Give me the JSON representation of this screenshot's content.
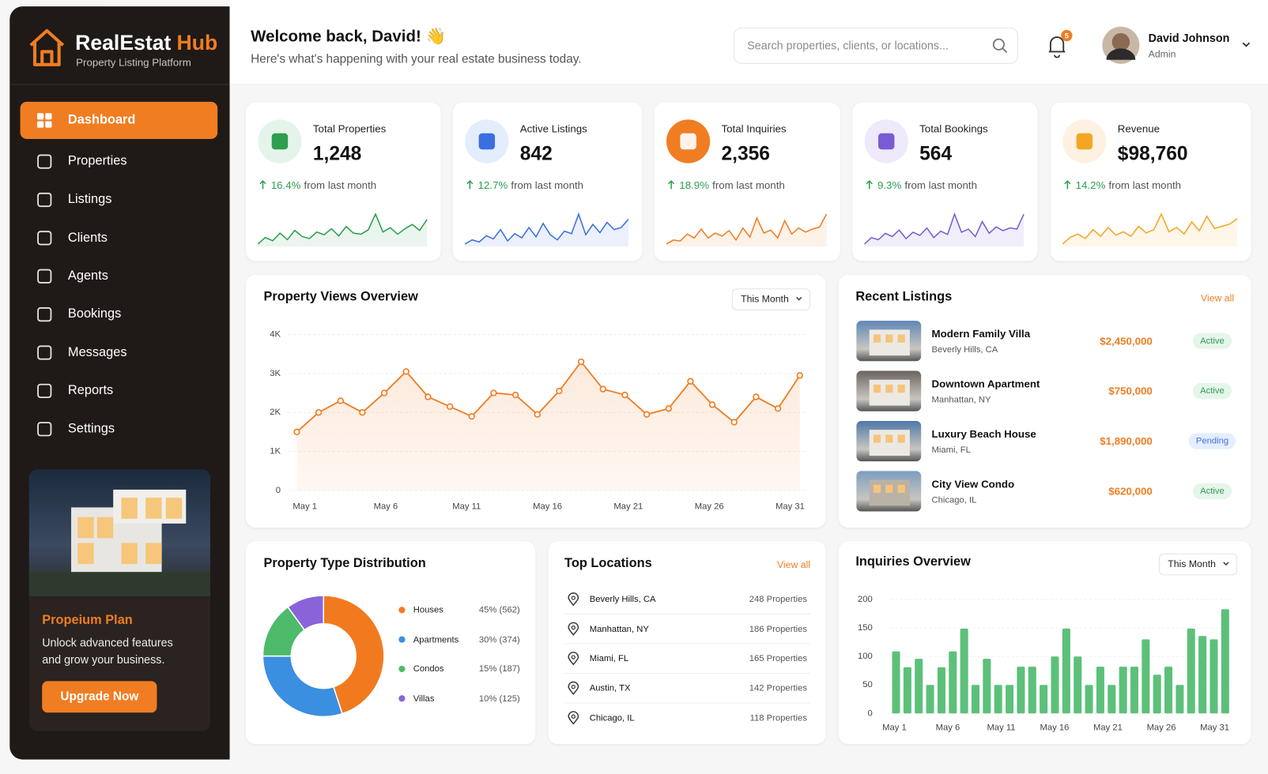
{
  "brand": {
    "name": "RealEstat",
    "accent": "Hub",
    "subtitle": "Property Listing Platform"
  },
  "nav": [
    "Dashboard",
    "Properties",
    "Listings",
    "Clients",
    "Agents",
    "Bookings",
    "Messages",
    "Reports",
    "Settings"
  ],
  "promo": {
    "title": "Propeium Plan",
    "text": [
      "Unlock advanced features",
      "and grow your business."
    ],
    "button": "Upgrade Now"
  },
  "header": {
    "title": "Welcome back, David! 👋",
    "subtitle": "Here's what's happening with your real estate business today.",
    "search": "Search properties, clients, or locations...",
    "notifications": 5,
    "user": "David Johnson",
    "role": "Admin"
  },
  "stats": [
    {
      "label": "Total Properties",
      "value": "1,248",
      "change": "16.4%",
      "change_text": "from last month",
      "color": "#2e9e4f",
      "bg": "#e5f4ea",
      "sparkline": [
        30,
        42,
        36,
        50,
        38,
        55,
        44,
        40,
        52,
        47,
        58,
        45,
        62,
        50,
        48,
        56,
        85,
        52,
        60,
        48,
        58,
        66,
        55,
        75
      ]
    },
    {
      "label": "Active Listings",
      "value": "842",
      "change": "12.7%",
      "change_text": "from last month",
      "color": "#3b6fe0",
      "bg": "#e4edfc",
      "sparkline": [
        30,
        38,
        34,
        46,
        40,
        58,
        36,
        50,
        42,
        62,
        44,
        70,
        48,
        38,
        55,
        50,
        88,
        48,
        68,
        52,
        72,
        58,
        62,
        78
      ]
    },
    {
      "label": "Total Inquiries",
      "value": "2,356",
      "change": "18.9%",
      "change_text": "from last month",
      "color": "#f07d22",
      "bg": "#fde9d7",
      "sparkline": [
        28,
        36,
        34,
        48,
        40,
        58,
        40,
        50,
        44,
        55,
        36,
        60,
        42,
        80,
        50,
        56,
        40,
        75,
        48,
        60,
        52,
        58,
        62,
        88
      ]
    },
    {
      "label": "Total Bookings",
      "value": "564",
      "change": "9.3%",
      "change_text": "from last month",
      "color": "#7a5bd3",
      "bg": "#eee9fb",
      "sparkline": [
        30,
        42,
        38,
        50,
        44,
        56,
        40,
        52,
        46,
        60,
        42,
        54,
        48,
        86,
        52,
        58,
        44,
        72,
        50,
        62,
        55,
        60,
        58,
        86
      ]
    },
    {
      "label": "Revenue",
      "value": "$98,760",
      "change": "14.2%",
      "change_text": "from last month",
      "color": "#f4a623",
      "bg": "#fdf1e1",
      "sparkline": [
        30,
        42,
        48,
        40,
        56,
        44,
        60,
        46,
        52,
        44,
        62,
        50,
        56,
        84,
        52,
        60,
        48,
        70,
        54,
        80,
        58,
        62,
        66,
        76
      ]
    }
  ],
  "views_chart": {
    "title": "Property Views Overview",
    "filter": "This Month",
    "color": "#f07d22",
    "values": [
      1500,
      2000,
      2300,
      2000,
      2500,
      3050,
      2400,
      2150,
      1900,
      2500,
      2450,
      1950,
      2550,
      3300,
      2600,
      2450,
      1950,
      2100,
      2800,
      2200,
      1750,
      2400,
      2100,
      2950
    ],
    "x_labels": [
      "May 1",
      "May 6",
      "May 11",
      "May 16",
      "May 21",
      "May 26",
      "May 31"
    ],
    "ylim": [
      0,
      4000
    ],
    "yticks": [
      0,
      {
        "value": 1000,
        "label": "1K"
      },
      {
        "value": 2000,
        "label": "2K"
      },
      {
        "value": 3000,
        "label": "3K"
      },
      {
        "value": 4000,
        "label": "4K"
      }
    ]
  },
  "recent_listings": {
    "title": "Recent Listings",
    "link": "View all",
    "items": [
      {
        "name": "Modern Family Villa",
        "location": "Beverly Hills, CA",
        "price": "$2,450,000",
        "status": "Active",
        "status_color": "#2e9e4f",
        "status_bg": "#e6f5ea"
      },
      {
        "name": "Downtown Apartment",
        "location": "Manhattan, NY",
        "price": "$750,000",
        "status": "Active",
        "status_color": "#2e9e4f",
        "status_bg": "#e6f5ea"
      },
      {
        "name": "Luxury Beach House",
        "location": "Miami, FL",
        "price": "$1,890,000",
        "status": "Pending",
        "status_color": "#3b6fe0",
        "status_bg": "#e5eefd"
      },
      {
        "name": "City View Condo",
        "location": "Chicago, IL",
        "price": "$620,000",
        "status": "Active",
        "status_color": "#2e9e4f",
        "status_bg": "#e6f5ea"
      }
    ]
  },
  "property_types": {
    "title": "Property Type Distribution",
    "items": [
      {
        "name": "Houses",
        "value": 45,
        "count": 562,
        "value_label": "45% (562)",
        "color": "#f27a1e"
      },
      {
        "name": "Apartments",
        "value": 30,
        "count": 374,
        "value_label": "30% (374)",
        "color": "#3a8fe0"
      },
      {
        "name": "Condos",
        "value": 15,
        "count": 187,
        "value_label": "15% (187)",
        "color": "#4dbb6a"
      },
      {
        "name": "Villas",
        "value": 10,
        "count": 125,
        "value_label": "10% (125)",
        "color": "#8a63d9"
      }
    ]
  },
  "top_locations": {
    "title": "Top Locations",
    "link": "View all",
    "items": [
      {
        "name": "Beverly Hills, CA",
        "count": "248 Properties"
      },
      {
        "name": "Manhattan, NY",
        "count": "186 Properties"
      },
      {
        "name": "Miami, FL",
        "count": "165 Properties"
      },
      {
        "name": "Austin, TX",
        "count": "142 Properties"
      },
      {
        "name": "Chicago, IL",
        "count": "118 Properties"
      }
    ]
  },
  "inquiries_chart": {
    "title": "Inquiries Overview",
    "filter": "This Month",
    "color": "#5cc07a",
    "values": [
      109,
      81,
      96,
      50,
      81,
      109,
      149,
      50,
      96,
      50,
      50,
      82,
      82,
      50,
      100,
      149,
      100,
      50,
      82,
      50,
      82,
      82,
      130,
      68,
      82,
      50,
      149,
      136,
      130,
      183
    ],
    "x_labels": [
      "May 1",
      "May 6",
      "May 11",
      "May 16",
      "May 21",
      "May 26",
      "May 31"
    ],
    "ylim": [
      0,
      200
    ],
    "yticks": [
      0,
      50,
      100,
      150,
      200
    ]
  }
}
